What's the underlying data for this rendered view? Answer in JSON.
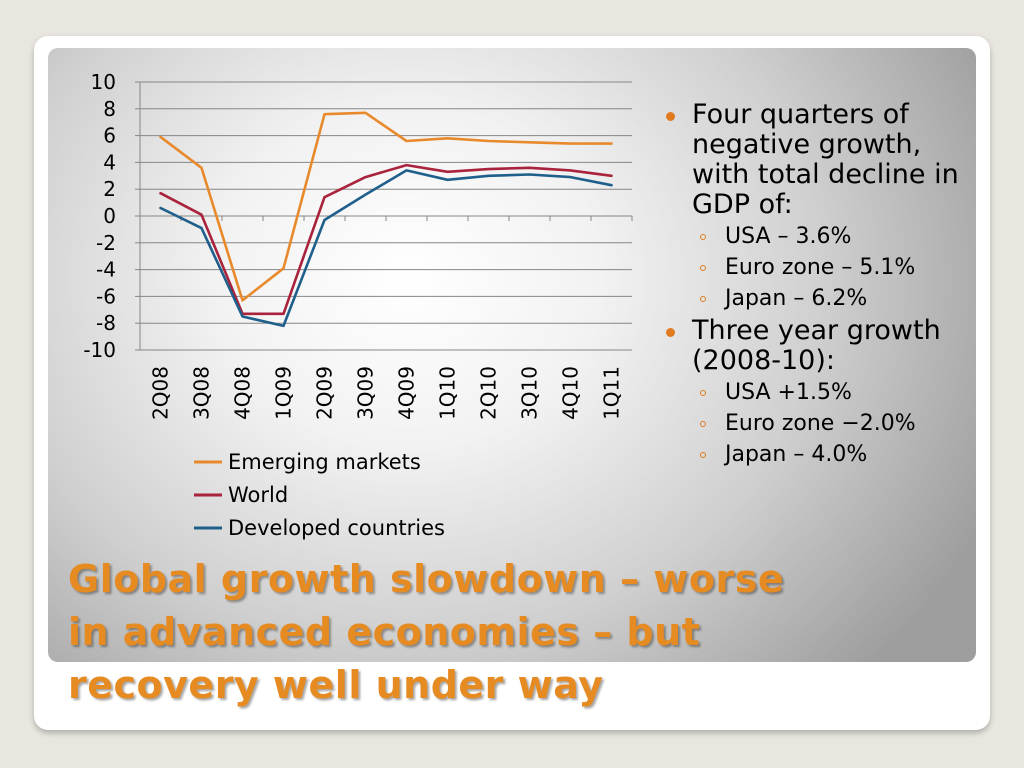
{
  "slide": {
    "title_line1": "Global growth slowdown – worse",
    "title_line2": "in advanced economies – but",
    "title_line3": "recovery well under way",
    "accent_color": "#e68a22",
    "bullet_color": "#e07b1f"
  },
  "bullets": {
    "b1": {
      "text": "Four quarters of negative growth, with total decline in GDP of:",
      "subs": [
        "USA – 3.6%",
        "Euro zone – 5.1%",
        "Japan – 6.2%"
      ]
    },
    "b2": {
      "text": "Three year growth (2008-10):",
      "subs": [
        "USA +1.5%",
        "Euro zone −2.0%",
        "Japan – 4.0%"
      ]
    }
  },
  "chart_data": {
    "type": "line",
    "categories": [
      "2Q08",
      "3Q08",
      "4Q08",
      "1Q09",
      "2Q09",
      "3Q09",
      "4Q09",
      "1Q10",
      "2Q10",
      "3Q10",
      "4Q10",
      "1Q11"
    ],
    "ylim": [
      -10,
      10
    ],
    "yticks": [
      "10",
      "8",
      "6",
      "4",
      "2",
      "0",
      "-2",
      "-4",
      "-6",
      "-8",
      "-10"
    ],
    "grid": true,
    "legend_position": "bottom",
    "series": [
      {
        "name": "Emerging markets",
        "color": "#e8892b",
        "values": [
          5.9,
          3.6,
          -6.3,
          -3.9,
          7.6,
          7.7,
          5.6,
          5.8,
          5.6,
          5.5,
          5.4,
          5.4
        ]
      },
      {
        "name": "World",
        "color": "#a8233b",
        "values": [
          1.7,
          0.1,
          -7.3,
          -7.3,
          1.4,
          2.9,
          3.8,
          3.3,
          3.5,
          3.6,
          3.4,
          3.0
        ]
      },
      {
        "name": "Developed countries",
        "color": "#1f5f8c",
        "values": [
          0.6,
          -0.9,
          -7.5,
          -8.2,
          -0.3,
          1.6,
          3.4,
          2.7,
          3.0,
          3.1,
          2.9,
          2.3
        ]
      }
    ]
  }
}
